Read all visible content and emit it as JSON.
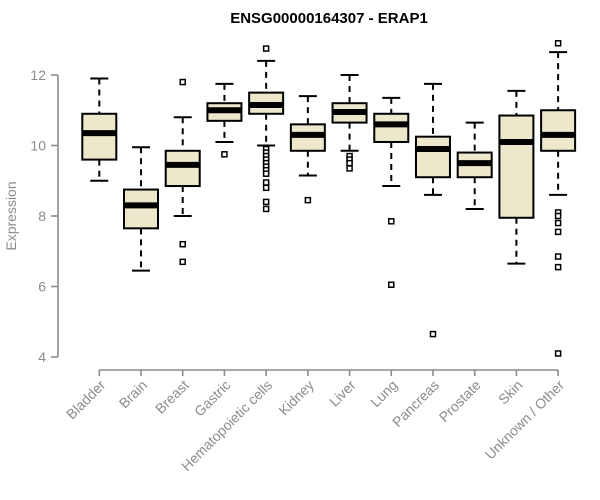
{
  "page": {
    "title": "ENSG00000164307 - ERAP1"
  },
  "chart_data": {
    "type": "boxplot",
    "title": "ENSG00000164307 - ERAP1",
    "xlabel": "",
    "ylabel": "Expression",
    "ylim": [
      4,
      12
    ],
    "yticks": [
      4,
      6,
      8,
      10,
      12
    ],
    "grid": false,
    "legend": "none",
    "colors": {
      "box_fill": "#EDE7CB",
      "box_stroke": "#000000",
      "median": "#000000",
      "whisker": "#000000",
      "axis": "#8c8c8c",
      "title": "#000000",
      "background": "#ffffff"
    },
    "categories": [
      "Bladder",
      "Brain",
      "Breast",
      "Gastric",
      "Hematopoietic cells",
      "Kidney",
      "Liver",
      "Lung",
      "Pancreas",
      "Prostate",
      "Skin",
      "Unknown / Other"
    ],
    "series": [
      {
        "name": "Bladder",
        "whisker_low": 9.0,
        "q1": 9.6,
        "median": 10.35,
        "q3": 10.9,
        "whisker_high": 11.9,
        "outliers": []
      },
      {
        "name": "Brain",
        "whisker_low": 6.45,
        "q1": 7.65,
        "median": 8.3,
        "q3": 8.75,
        "whisker_high": 9.95,
        "outliers": []
      },
      {
        "name": "Breast",
        "whisker_low": 8.0,
        "q1": 8.85,
        "median": 9.45,
        "q3": 9.85,
        "whisker_high": 10.8,
        "outliers": [
          11.8,
          7.2,
          6.7
        ]
      },
      {
        "name": "Gastric",
        "whisker_low": 10.1,
        "q1": 10.7,
        "median": 11.0,
        "q3": 11.2,
        "whisker_high": 11.75,
        "outliers": [
          9.75
        ]
      },
      {
        "name": "Hematopoietic cells",
        "whisker_low": 10.0,
        "q1": 10.9,
        "median": 11.15,
        "q3": 11.5,
        "whisker_high": 12.4,
        "outliers": [
          12.75,
          9.9,
          9.8,
          9.7,
          9.6,
          9.5,
          9.4,
          9.3,
          9.2,
          8.95,
          8.8,
          8.4,
          8.2
        ]
      },
      {
        "name": "Kidney",
        "whisker_low": 9.15,
        "q1": 9.85,
        "median": 10.3,
        "q3": 10.6,
        "whisker_high": 11.4,
        "outliers": [
          8.45
        ]
      },
      {
        "name": "Liver",
        "whisker_low": 9.85,
        "q1": 10.65,
        "median": 10.95,
        "q3": 11.2,
        "whisker_high": 12.0,
        "outliers": [
          9.7,
          9.6,
          9.5,
          9.35
        ]
      },
      {
        "name": "Lung",
        "whisker_low": 8.85,
        "q1": 10.1,
        "median": 10.6,
        "q3": 10.9,
        "whisker_high": 11.35,
        "outliers": [
          7.85,
          6.05
        ]
      },
      {
        "name": "Pancreas",
        "whisker_low": 8.6,
        "q1": 9.1,
        "median": 9.9,
        "q3": 10.25,
        "whisker_high": 11.75,
        "outliers": [
          4.65
        ]
      },
      {
        "name": "Prostate",
        "whisker_low": 8.2,
        "q1": 9.1,
        "median": 9.5,
        "q3": 9.8,
        "whisker_high": 10.65,
        "outliers": []
      },
      {
        "name": "Skin",
        "whisker_low": 6.65,
        "q1": 7.95,
        "median": 10.1,
        "q3": 10.85,
        "whisker_high": 11.55,
        "outliers": []
      },
      {
        "name": "Unknown / Other",
        "whisker_low": 8.6,
        "q1": 9.85,
        "median": 10.3,
        "q3": 11.0,
        "whisker_high": 12.65,
        "outliers": [
          12.9,
          8.1,
          8.0,
          7.8,
          7.55,
          6.85,
          6.55,
          4.1
        ]
      }
    ]
  }
}
